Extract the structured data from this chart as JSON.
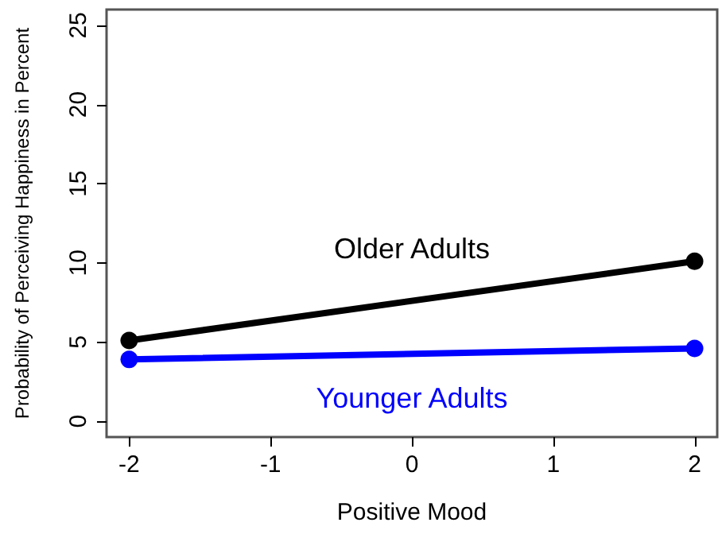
{
  "chart_data": {
    "type": "line",
    "xlabel": "Positive Mood",
    "ylabel": "Probability of Perceiving Happiness in Percent",
    "x": [
      -2,
      2
    ],
    "series": [
      {
        "name": "Older Adults",
        "color": "#000000",
        "values": [
          5.1,
          10.1
        ]
      },
      {
        "name": "Younger Adults",
        "color": "#0000ff",
        "values": [
          3.9,
          4.6
        ]
      }
    ],
    "xlim": [
      -2.16,
      2.16
    ],
    "xticks": [
      -2,
      -1,
      0,
      1,
      2
    ],
    "ylim": [
      -1,
      26
    ],
    "yticks": [
      0,
      5,
      10,
      15,
      20,
      25
    ],
    "grid": false,
    "legend": false,
    "marker": "circle",
    "line_style": "solid"
  }
}
